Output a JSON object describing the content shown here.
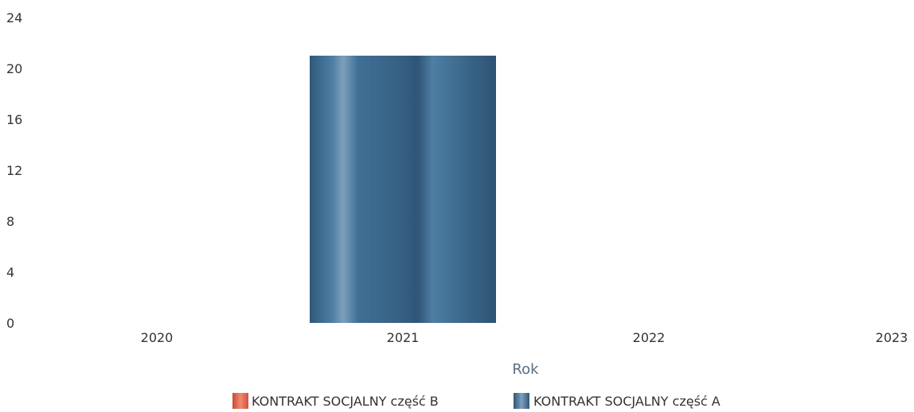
{
  "chart_data": {
    "type": "bar",
    "title": "",
    "xlabel": "Rok",
    "ylabel": "",
    "categories": [
      "2020",
      "2021",
      "2022",
      "2023"
    ],
    "ylim": [
      0,
      24
    ],
    "yticks": [
      0,
      4,
      8,
      12,
      16,
      20,
      24
    ],
    "grid": false,
    "legend_position": "bottom",
    "series": [
      {
        "name": "KONTRAKT SOCJALNY część B",
        "values": [
          0,
          0,
          0,
          0
        ],
        "color": "#e0604a"
      },
      {
        "name": "KONTRAKT SOCJALNY część A",
        "values": [
          0,
          21,
          0,
          0
        ],
        "color": "#3f6f94"
      }
    ]
  }
}
